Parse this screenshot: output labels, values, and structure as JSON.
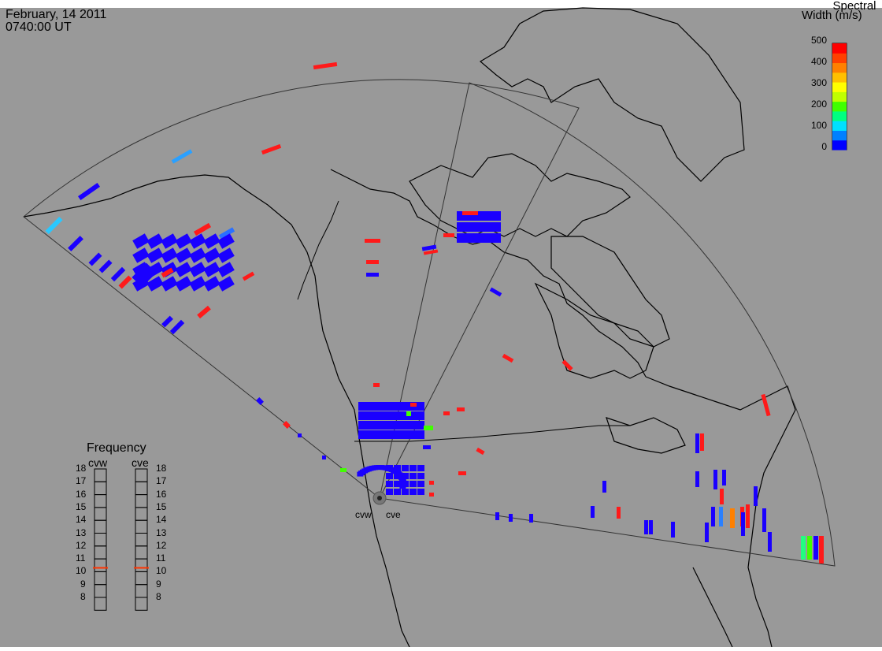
{
  "header": {
    "date": "February, 14 2011",
    "time": "0740:00 UT"
  },
  "colorbar": {
    "title_line1": "Spectral",
    "title_line2": "Width (m/s)",
    "ticks": [
      "500",
      "400",
      "300",
      "200",
      "100",
      "0"
    ],
    "colors": [
      "#0000ff",
      "#0080ff",
      "#00e0ff",
      "#00ff80",
      "#40ff00",
      "#c0ff00",
      "#ffff00",
      "#ffc000",
      "#ff8000",
      "#ff4000",
      "#ff0000"
    ]
  },
  "radars": {
    "site_labels": [
      "cvw",
      "cve"
    ]
  },
  "frequency_panel": {
    "title": "Frequency",
    "columns": [
      "cvw",
      "cve"
    ],
    "ticks": [
      "18",
      "17",
      "16",
      "15",
      "14",
      "13",
      "12",
      "11",
      "10",
      "9",
      "8"
    ],
    "cvw_frequency_mhz": 10.8,
    "cve_frequency_mhz": 10.8
  },
  "colors": {
    "background": "#999999",
    "data_blue": "#1a00ff",
    "data_red": "#ff1a1a",
    "frequency_marker": "#ff3300"
  }
}
